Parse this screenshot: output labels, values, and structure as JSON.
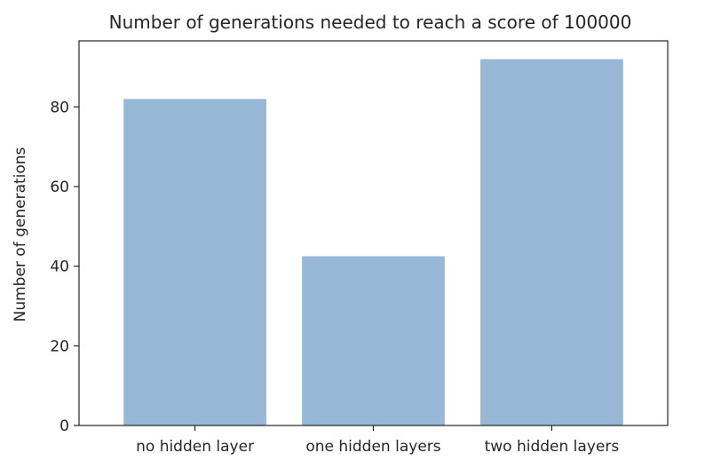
{
  "chart_data": {
    "type": "bar",
    "title": "Number of generations needed to reach a score of 100000",
    "xlabel": "",
    "ylabel": "Number of generations",
    "categories": [
      "no hidden layer",
      "one hidden layers",
      "two hidden layers"
    ],
    "values": [
      82,
      42.5,
      92
    ],
    "ylim": [
      0,
      96.6
    ],
    "yticks": [
      0,
      20,
      40,
      60,
      80
    ],
    "bar_color": "#97b8d6",
    "grid": false,
    "legend": "none"
  }
}
